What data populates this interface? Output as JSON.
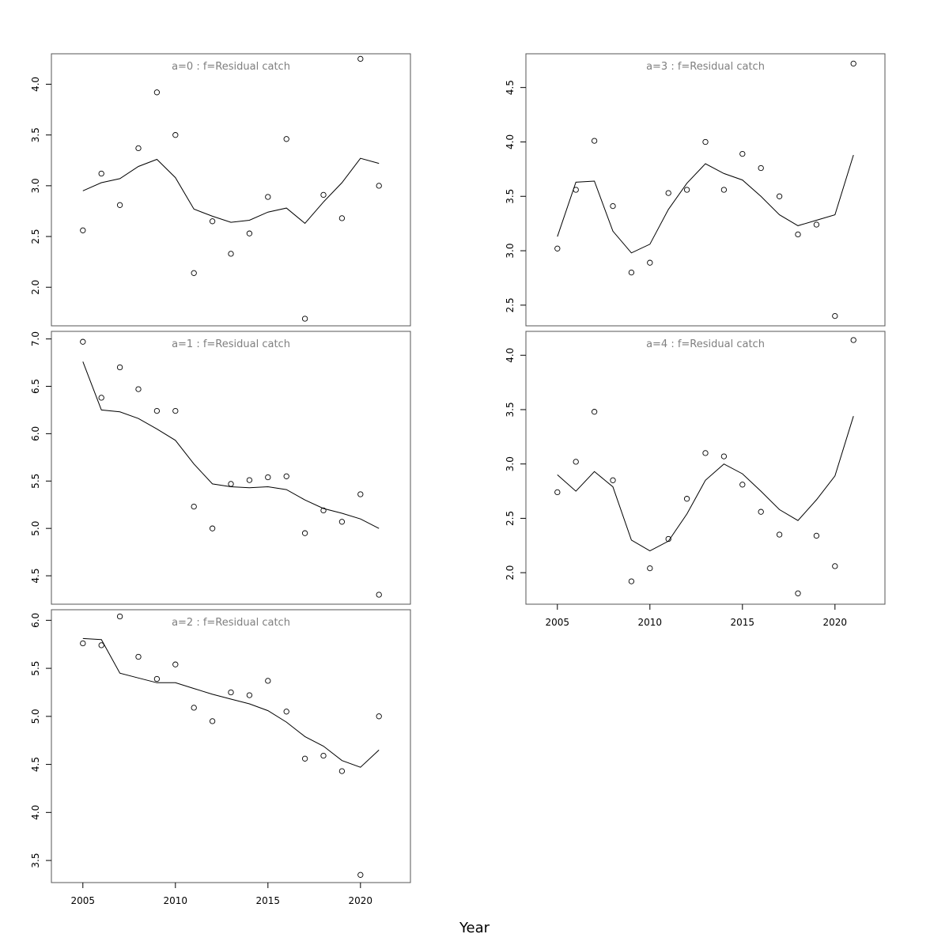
{
  "figure": {
    "xlabel": "Year"
  },
  "chart_data": [
    {
      "type": "line",
      "title": "a=0  :  f=Residual catch",
      "xlabel": "",
      "ylabel": "",
      "xlim": [
        2003.3,
        2022.7
      ],
      "ylim": [
        1.62,
        4.3
      ],
      "xticks": [
        2005,
        2010,
        2015,
        2020
      ],
      "yticks": [
        2.0,
        2.5,
        3.0,
        3.5,
        4.0
      ],
      "x": [
        2005,
        2006,
        2007,
        2008,
        2009,
        2010,
        2011,
        2012,
        2013,
        2014,
        2015,
        2016,
        2017,
        2018,
        2019,
        2020,
        2021
      ],
      "series": [
        {
          "kind": "points",
          "values": [
            2.56,
            3.12,
            2.81,
            3.37,
            3.92,
            3.5,
            2.14,
            2.65,
            2.33,
            2.53,
            2.89,
            3.46,
            1.69,
            2.91,
            2.68,
            4.25,
            3.0
          ]
        },
        {
          "kind": "line",
          "values": [
            2.95,
            3.03,
            3.07,
            3.19,
            3.26,
            3.08,
            2.77,
            2.7,
            2.64,
            2.66,
            2.74,
            2.78,
            2.63,
            2.84,
            3.03,
            3.27,
            3.22
          ]
        }
      ]
    },
    {
      "type": "line",
      "title": "a=1  :  f=Residual catch",
      "xlabel": "",
      "ylabel": "",
      "xlim": [
        2003.3,
        2022.7
      ],
      "ylim": [
        4.2,
        7.08
      ],
      "xticks": [
        2005,
        2010,
        2015,
        2020
      ],
      "yticks": [
        4.5,
        5.0,
        5.5,
        6.0,
        6.5,
        7.0
      ],
      "x": [
        2005,
        2006,
        2007,
        2008,
        2009,
        2010,
        2011,
        2012,
        2013,
        2014,
        2015,
        2016,
        2017,
        2018,
        2019,
        2020,
        2021
      ],
      "series": [
        {
          "kind": "points",
          "values": [
            6.97,
            6.38,
            6.7,
            6.47,
            6.24,
            6.24,
            5.23,
            5.0,
            5.47,
            5.51,
            5.54,
            5.55,
            4.95,
            5.19,
            5.07,
            5.36,
            4.3
          ]
        },
        {
          "kind": "line",
          "values": [
            6.76,
            6.25,
            6.23,
            6.16,
            6.05,
            5.93,
            5.68,
            5.47,
            5.44,
            5.43,
            5.44,
            5.41,
            5.3,
            5.21,
            5.16,
            5.1,
            5.0
          ]
        }
      ]
    },
    {
      "type": "line",
      "title": "a=2  :  f=Residual catch",
      "xlabel": "Year",
      "ylabel": "",
      "xlim": [
        2003.3,
        2022.7
      ],
      "ylim": [
        3.27,
        6.11
      ],
      "xticks": [
        2005,
        2010,
        2015,
        2020
      ],
      "yticks": [
        3.5,
        4.0,
        4.5,
        5.0,
        5.5,
        6.0
      ],
      "x": [
        2005,
        2006,
        2007,
        2008,
        2009,
        2010,
        2011,
        2012,
        2013,
        2014,
        2015,
        2016,
        2017,
        2018,
        2019,
        2020,
        2021
      ],
      "series": [
        {
          "kind": "points",
          "values": [
            5.76,
            5.74,
            6.04,
            5.62,
            5.39,
            5.54,
            5.09,
            4.95,
            5.25,
            5.22,
            5.37,
            5.05,
            4.56,
            4.59,
            4.43,
            3.35,
            5.0
          ]
        },
        {
          "kind": "line",
          "values": [
            5.81,
            5.8,
            5.45,
            5.4,
            5.35,
            5.35,
            5.29,
            5.23,
            5.18,
            5.13,
            5.06,
            4.94,
            4.79,
            4.69,
            4.54,
            4.47,
            4.65
          ]
        }
      ]
    },
    {
      "type": "line",
      "title": "a=3  :  f=Residual catch",
      "xlabel": "",
      "ylabel": "",
      "xlim": [
        2003.3,
        2022.7
      ],
      "ylim": [
        2.31,
        4.81
      ],
      "xticks": [
        2005,
        2010,
        2015,
        2020
      ],
      "yticks": [
        2.5,
        3.0,
        3.5,
        4.0,
        4.5
      ],
      "x": [
        2005,
        2006,
        2007,
        2008,
        2009,
        2010,
        2011,
        2012,
        2013,
        2014,
        2015,
        2016,
        2017,
        2018,
        2019,
        2020,
        2021
      ],
      "series": [
        {
          "kind": "points",
          "values": [
            3.02,
            3.56,
            4.01,
            3.41,
            2.8,
            2.89,
            3.53,
            3.56,
            4.0,
            3.56,
            3.89,
            3.76,
            3.5,
            3.15,
            3.24,
            2.4,
            4.72
          ]
        },
        {
          "kind": "line",
          "values": [
            3.13,
            3.63,
            3.64,
            3.18,
            2.98,
            3.06,
            3.38,
            3.62,
            3.8,
            3.71,
            3.65,
            3.5,
            3.33,
            3.23,
            3.28,
            3.33,
            3.88
          ]
        }
      ]
    },
    {
      "type": "line",
      "title": "a=4  :  f=Residual catch",
      "xlabel": "Year",
      "ylabel": "",
      "xlim": [
        2003.3,
        2022.7
      ],
      "ylim": [
        1.71,
        4.22
      ],
      "xticks": [
        2005,
        2010,
        2015,
        2020
      ],
      "yticks": [
        2.0,
        2.5,
        3.0,
        3.5,
        4.0
      ],
      "x": [
        2005,
        2006,
        2007,
        2008,
        2009,
        2010,
        2011,
        2012,
        2013,
        2014,
        2015,
        2016,
        2017,
        2018,
        2019,
        2020,
        2021
      ],
      "series": [
        {
          "kind": "points",
          "values": [
            2.74,
            3.02,
            3.48,
            2.85,
            1.92,
            2.04,
            2.31,
            2.68,
            3.1,
            3.07,
            2.81,
            2.56,
            2.35,
            1.81,
            2.34,
            2.06,
            4.14
          ]
        },
        {
          "kind": "line",
          "values": [
            2.9,
            2.75,
            2.93,
            2.79,
            2.3,
            2.2,
            2.29,
            2.54,
            2.85,
            3.0,
            2.91,
            2.75,
            2.58,
            2.48,
            2.67,
            2.89,
            3.44
          ]
        }
      ]
    }
  ]
}
